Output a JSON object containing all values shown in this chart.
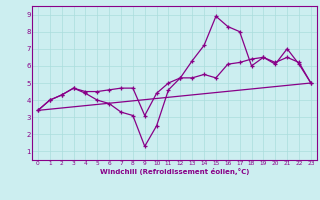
{
  "xlabel": "Windchill (Refroidissement éolien,°C)",
  "bg_color": "#cceef0",
  "line_color": "#880088",
  "grid_color": "#aadddd",
  "xlim": [
    -0.5,
    23.5
  ],
  "ylim": [
    0.5,
    9.5
  ],
  "xticks": [
    0,
    1,
    2,
    3,
    4,
    5,
    6,
    7,
    8,
    9,
    10,
    11,
    12,
    13,
    14,
    15,
    16,
    17,
    18,
    19,
    20,
    21,
    22,
    23
  ],
  "yticks": [
    1,
    2,
    3,
    4,
    5,
    6,
    7,
    8,
    9
  ],
  "line1_x": [
    0,
    1,
    2,
    3,
    4,
    5,
    6,
    7,
    8,
    9,
    10,
    11,
    12,
    13,
    14,
    15,
    16,
    17,
    18,
    19,
    20,
    21,
    22,
    23
  ],
  "line1_y": [
    3.4,
    4.0,
    4.3,
    4.7,
    4.4,
    4.0,
    3.8,
    3.3,
    3.1,
    1.3,
    2.5,
    4.6,
    5.3,
    6.3,
    7.2,
    8.9,
    8.3,
    8.0,
    6.0,
    6.5,
    6.1,
    7.0,
    6.1,
    5.0
  ],
  "line2_x": [
    0,
    1,
    2,
    3,
    4,
    5,
    6,
    7,
    8,
    9,
    10,
    11,
    12,
    13,
    14,
    15,
    16,
    17,
    18,
    19,
    20,
    21,
    22,
    23
  ],
  "line2_y": [
    3.4,
    4.0,
    4.3,
    4.7,
    4.5,
    4.5,
    4.6,
    4.7,
    4.7,
    3.1,
    4.4,
    5.0,
    5.3,
    5.3,
    5.5,
    5.3,
    6.1,
    6.2,
    6.4,
    6.5,
    6.2,
    6.5,
    6.2,
    5.0
  ],
  "line3_x": [
    0,
    23
  ],
  "line3_y": [
    3.4,
    5.0
  ]
}
